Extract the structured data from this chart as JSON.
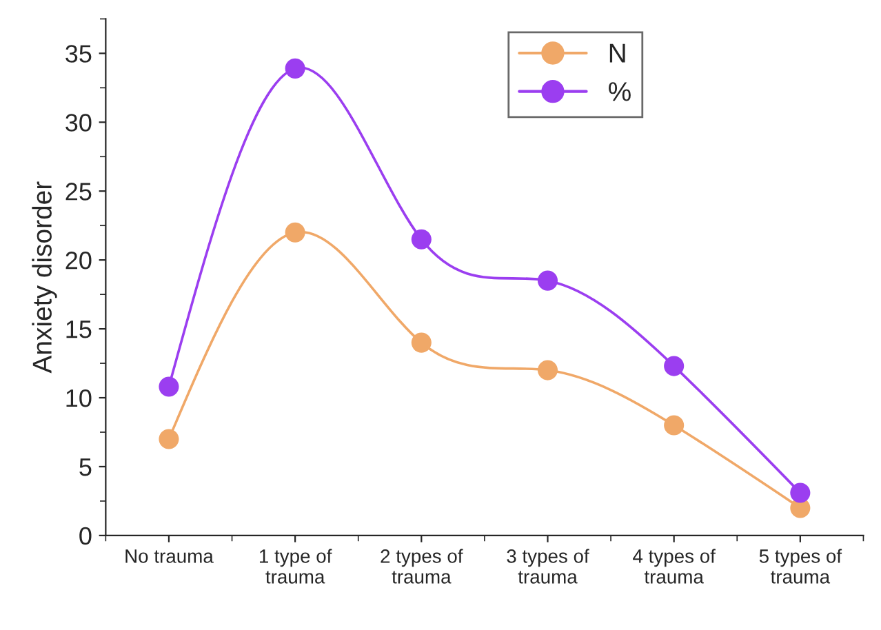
{
  "chart_data": {
    "type": "line",
    "ylabel": "Anxiety disorder",
    "categories": [
      "No trauma",
      "1 type of\ntrauma",
      "2 types of\ntrauma",
      "3 types of\ntrauma",
      "4 types of\ntrauma",
      "5 types of\ntrauma"
    ],
    "series": [
      {
        "name": "N",
        "color": "#f0a868",
        "values": [
          7,
          22,
          14,
          12,
          8,
          2
        ]
      },
      {
        "name": "%",
        "color": "#9b3ef0",
        "values": [
          10.8,
          33.9,
          21.5,
          18.5,
          12.3,
          3.1
        ]
      }
    ],
    "ylim": [
      0,
      37.5
    ],
    "yticks": [
      0,
      5,
      10,
      15,
      20,
      25,
      30,
      35
    ],
    "grid": false,
    "legend": "top",
    "marker": "circle",
    "line_style": "solid"
  }
}
